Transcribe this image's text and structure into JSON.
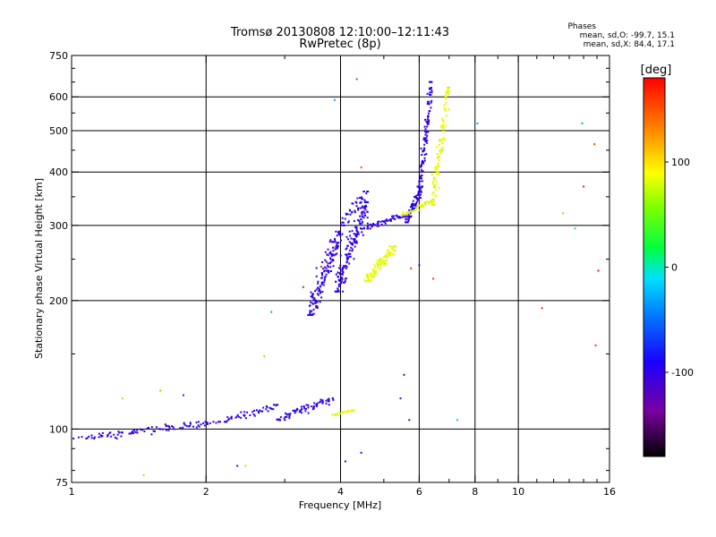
{
  "chart_data": {
    "type": "scatter",
    "title": "Tromsø 20130808 12:10:00–12:11:43",
    "subtitle": "RwPretec (8p)",
    "xlabel": "Frequency [MHz]",
    "ylabel": "Stationary phase Virtual Height [km]",
    "x_scale": "log",
    "y_scale": "log",
    "xlim": [
      1,
      16
    ],
    "ylim": [
      75,
      750
    ],
    "grid": true,
    "x_ticks": [
      1,
      2,
      4,
      6,
      8,
      10,
      16
    ],
    "x_tick_labels": [
      "1",
      "2",
      "4",
      "6",
      "8",
      "10",
      "16"
    ],
    "y_ticks": [
      75,
      100,
      200,
      300,
      400,
      500,
      600,
      750
    ],
    "y_tick_labels": [
      "75",
      "100",
      "200",
      "300",
      "400",
      "500",
      "600",
      "750"
    ],
    "stats": {
      "title": "Phases",
      "o_line": "mean, sd,O: -99.7, 15.1",
      "x_line": "mean, sd,X:  84.4, 17.1"
    },
    "colorbar": {
      "label": "[deg]",
      "range": [
        -180,
        180
      ],
      "ticks": [
        100,
        0,
        -100
      ],
      "tick_labels": [
        "100",
        "0",
        "-100"
      ]
    },
    "series": [
      {
        "name": "O",
        "phase_mean": -99.7,
        "phase_sd": 15.1,
        "traces": [
          {
            "x_range": [
              1.05,
              2.15
            ],
            "y_range": [
              95,
              104
            ],
            "count": 95
          },
          {
            "x_range": [
              2.2,
              2.9
            ],
            "y_range": [
              104,
              114
            ],
            "count": 45
          },
          {
            "x_range": [
              2.9,
              3.85
            ],
            "y_range": [
              105,
              118
            ],
            "count": 70
          },
          {
            "x_range": [
              3.4,
              4.0
            ],
            "y_range": [
              185,
              290
            ],
            "count": 150
          },
          {
            "x_range": [
              3.9,
              4.6
            ],
            "y_range": [
              210,
              340
            ],
            "count": 160
          },
          {
            "x_range": [
              4.5,
              5.6
            ],
            "y_range": [
              295,
              318
            ],
            "count": 60
          },
          {
            "x_range": [
              5.6,
              6.1
            ],
            "y_range": [
              305,
              370
            ],
            "count": 70
          },
          {
            "x_range": [
              6.0,
              6.4
            ],
            "y_range": [
              360,
              650
            ],
            "count": 110
          },
          {
            "x_range": [
              4.0,
              4.6
            ],
            "y_range": [
              300,
              360
            ],
            "count": 40
          }
        ]
      },
      {
        "name": "X",
        "phase_mean": 84.4,
        "phase_sd": 17.1,
        "traces": [
          {
            "x_range": [
              3.85,
              4.3
            ],
            "y_range": [
              108,
              111
            ],
            "count": 20
          },
          {
            "x_range": [
              4.55,
              5.3
            ],
            "y_range": [
              222,
              268
            ],
            "count": 110
          },
          {
            "x_range": [
              5.5,
              6.5
            ],
            "y_range": [
              318,
              345
            ],
            "count": 45
          },
          {
            "x_range": [
              6.4,
              7.0
            ],
            "y_range": [
              335,
              630
            ],
            "count": 110
          }
        ]
      }
    ],
    "scattered_points": [
      {
        "x": 1.3,
        "y": 118,
        "phase": 110
      },
      {
        "x": 1.58,
        "y": 123,
        "phase": 120
      },
      {
        "x": 1.78,
        "y": 120,
        "phase": -70
      },
      {
        "x": 2.7,
        "y": 148,
        "phase": 115
      },
      {
        "x": 2.8,
        "y": 188,
        "phase": -30
      },
      {
        "x": 2.35,
        "y": 82,
        "phase": -110
      },
      {
        "x": 2.45,
        "y": 82,
        "phase": 110
      },
      {
        "x": 1.45,
        "y": 78,
        "phase": 110
      },
      {
        "x": 3.3,
        "y": 215,
        "phase": 170
      },
      {
        "x": 3.62,
        "y": 240,
        "phase": 170
      },
      {
        "x": 3.88,
        "y": 590,
        "phase": -30
      },
      {
        "x": 4.35,
        "y": 660,
        "phase": 160
      },
      {
        "x": 4.45,
        "y": 410,
        "phase": 150
      },
      {
        "x": 4.1,
        "y": 84,
        "phase": -110
      },
      {
        "x": 4.45,
        "y": 88,
        "phase": -110
      },
      {
        "x": 5.45,
        "y": 118,
        "phase": -110
      },
      {
        "x": 5.55,
        "y": 134,
        "phase": -150
      },
      {
        "x": 5.7,
        "y": 105,
        "phase": -110
      },
      {
        "x": 5.75,
        "y": 238,
        "phase": 160
      },
      {
        "x": 6.0,
        "y": 242,
        "phase": -110
      },
      {
        "x": 6.45,
        "y": 225,
        "phase": 160
      },
      {
        "x": 7.3,
        "y": 105,
        "phase": -20
      },
      {
        "x": 8.1,
        "y": 520,
        "phase": -30
      },
      {
        "x": 11.3,
        "y": 192,
        "phase": 160
      },
      {
        "x": 12.6,
        "y": 320,
        "phase": 120
      },
      {
        "x": 13.4,
        "y": 295,
        "phase": 10
      },
      {
        "x": 13.9,
        "y": 520,
        "phase": -30
      },
      {
        "x": 14.0,
        "y": 370,
        "phase": 170
      },
      {
        "x": 14.8,
        "y": 465,
        "phase": 150
      },
      {
        "x": 14.9,
        "y": 157,
        "phase": 160
      },
      {
        "x": 15.1,
        "y": 235,
        "phase": 170
      }
    ]
  }
}
